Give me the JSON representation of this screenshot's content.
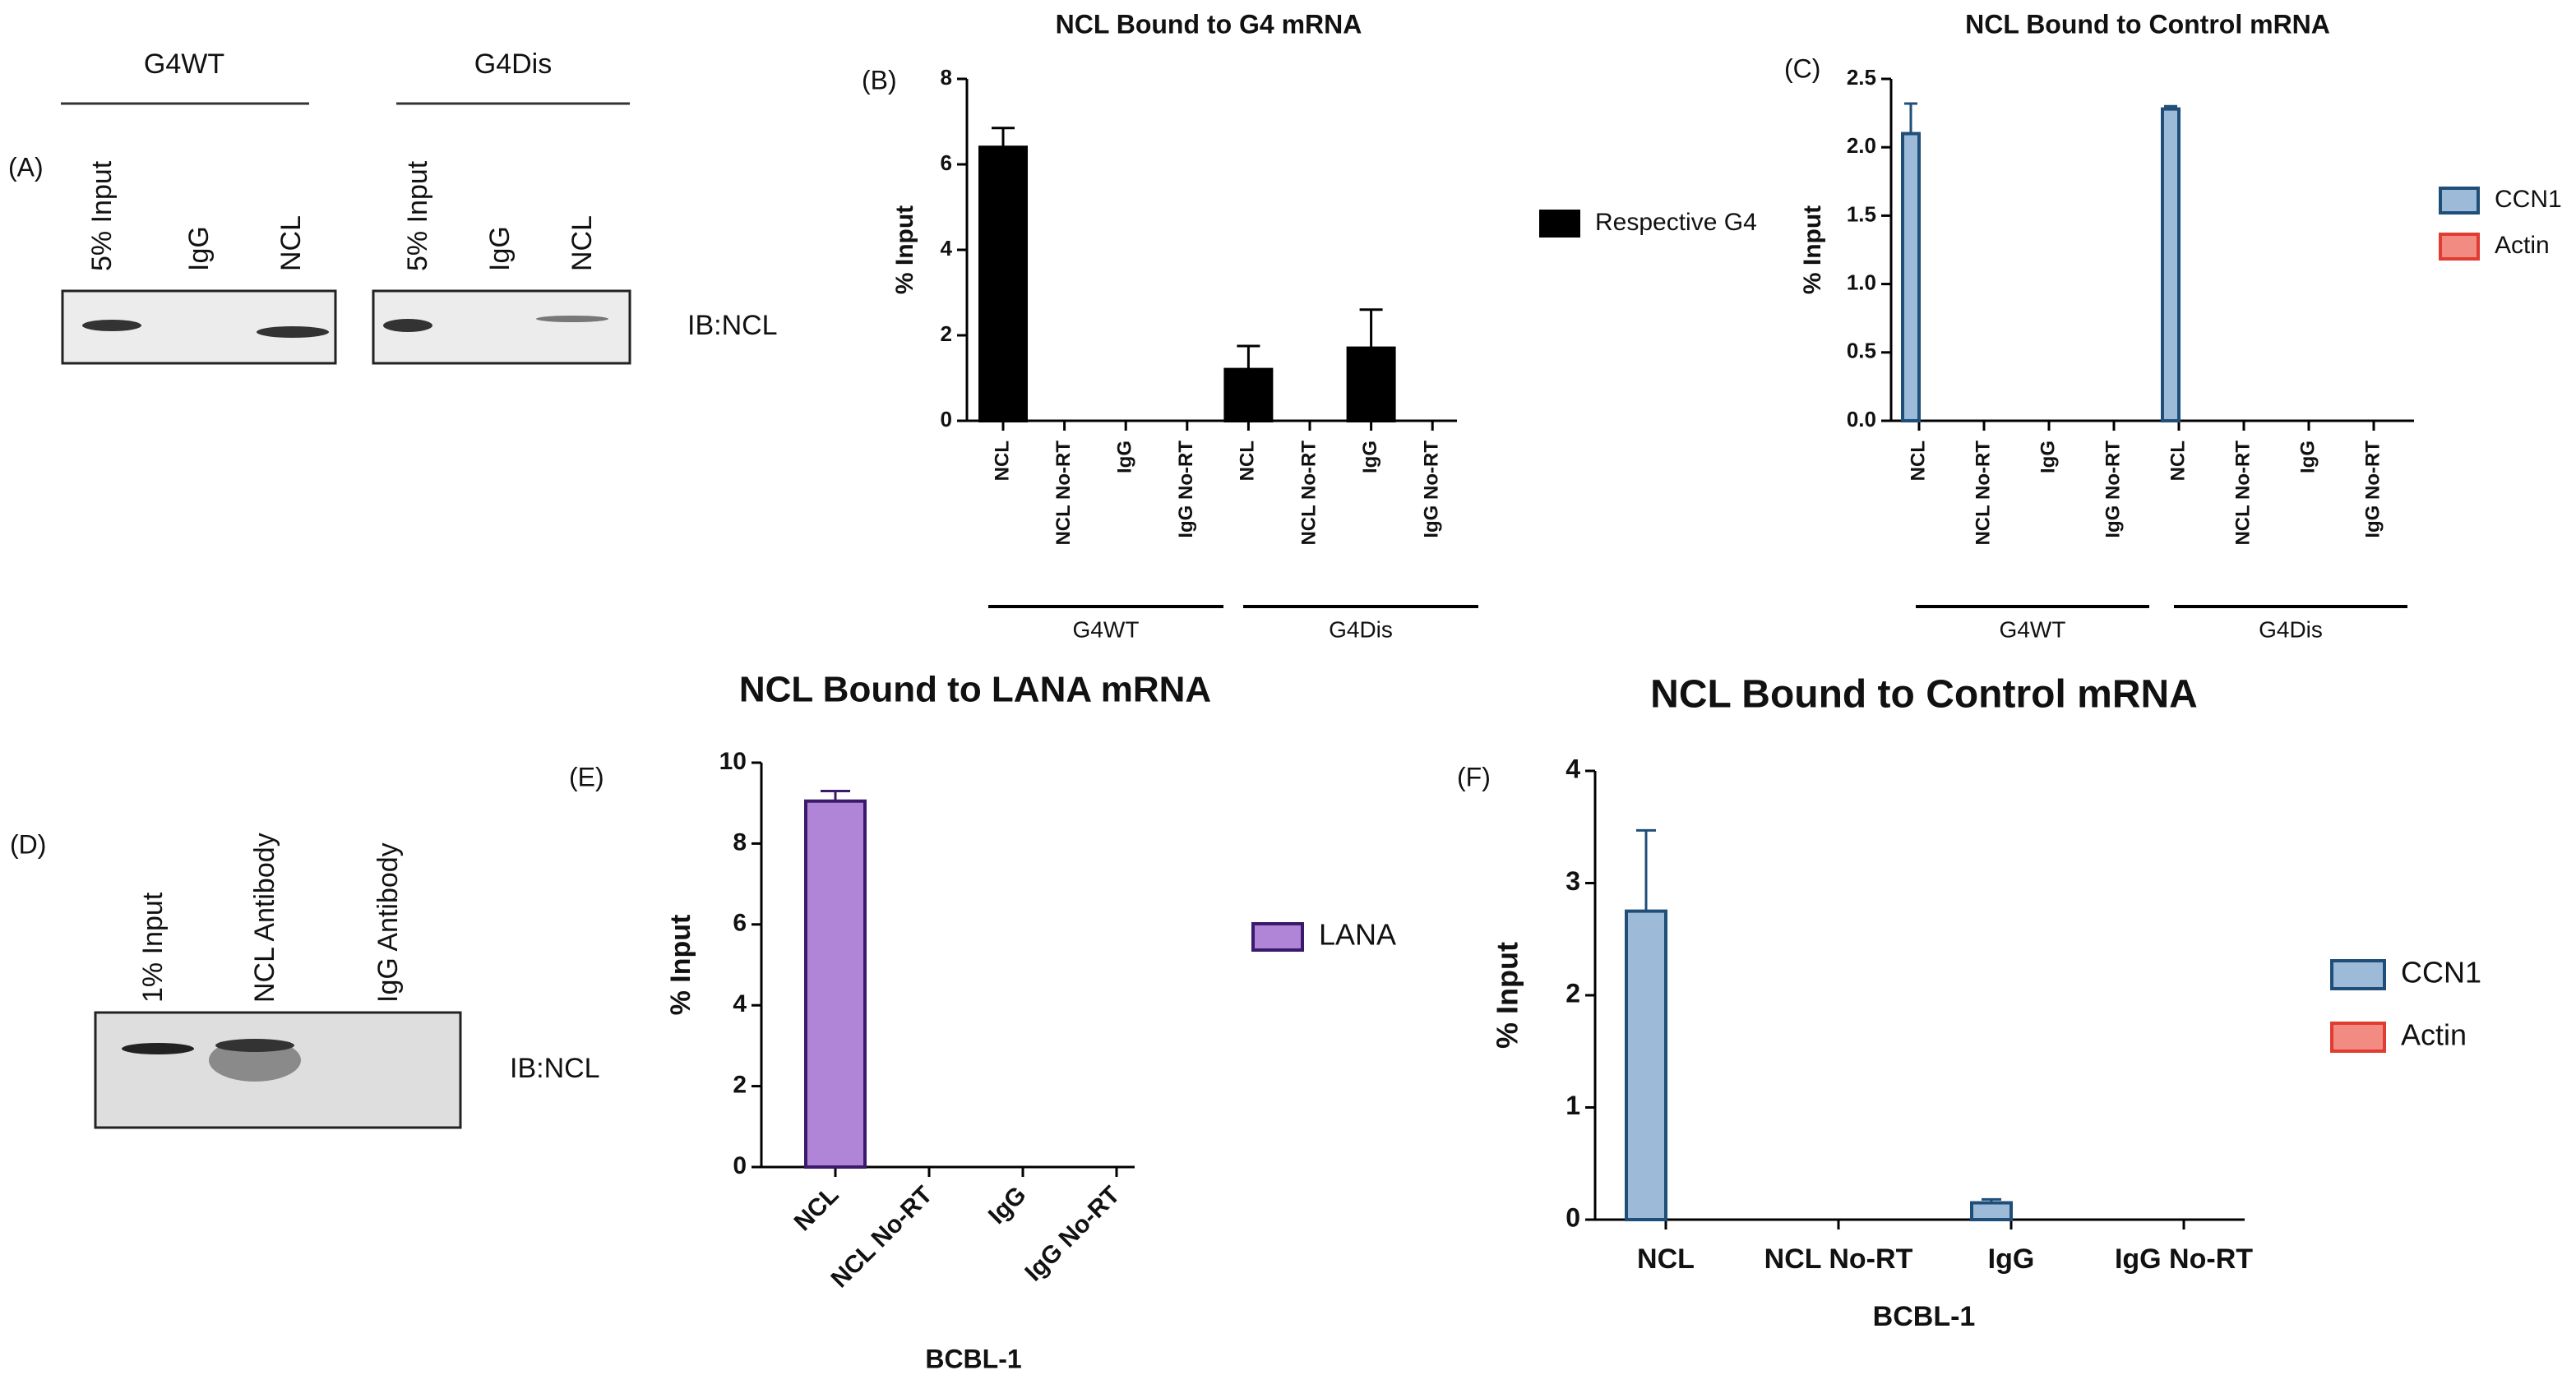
{
  "chart_data": [
    {
      "type": "bar",
      "panel_label": "(B)",
      "title": "NCL Bound to G4 mRNA",
      "ylabel": "% Input",
      "categories": [
        "NCL",
        "NCL No-RT",
        "IgG",
        "IgG No-RT",
        "NCL",
        "NCL No-RT",
        "IgG",
        "IgG No-RT"
      ],
      "groups": [
        "G4WT",
        "G4Dis"
      ],
      "series": [
        {
          "name": "Respective G4",
          "color": "#000000",
          "edge": "#000000",
          "values": [
            6.4,
            0,
            0,
            0,
            1.2,
            0,
            1.7,
            0
          ],
          "errors": [
            0.45,
            null,
            null,
            null,
            0.55,
            null,
            0.9,
            null
          ]
        }
      ],
      "ylim": [
        0,
        8
      ],
      "yticks": [
        0,
        2,
        4,
        6,
        8
      ],
      "legend": "right"
    },
    {
      "type": "bar",
      "panel_label": "(C)",
      "title": "NCL Bound to Control mRNA",
      "ylabel": "% Input",
      "categories": [
        "NCL",
        "NCL No-RT",
        "IgG",
        "IgG No-RT",
        "NCL",
        "NCL No-RT",
        "IgG",
        "IgG No-RT"
      ],
      "groups": [
        "G4WT",
        "G4Dis"
      ],
      "series": [
        {
          "name": "CCN1",
          "color": "#9dbbd8",
          "edge": "#1f4e79",
          "values": [
            2.1,
            0,
            0,
            0,
            2.28,
            0,
            0,
            0
          ],
          "errors": [
            0.22,
            null,
            null,
            null,
            0.02,
            null,
            null,
            null
          ]
        },
        {
          "name": "Actin",
          "color": "#f28b82",
          "edge": "#e03c31",
          "values": [
            0,
            0,
            0,
            0,
            0,
            0,
            0,
            0
          ],
          "errors": [
            null,
            null,
            null,
            null,
            null,
            null,
            null,
            null
          ]
        }
      ],
      "ylim": [
        0,
        2.5
      ],
      "yticks": [
        {
          "value": 0,
          "label": "0.0"
        },
        0.5,
        {
          "value": 1,
          "label": "1.0"
        },
        1.5,
        {
          "value": 2,
          "label": "2.0"
        },
        2.5
      ],
      "legend": "right"
    },
    {
      "type": "bar",
      "panel_label": "(E)",
      "title": "NCL Bound to LANA mRNA",
      "ylabel": "% Input",
      "xlabel": "BCBL-1",
      "categories": [
        "NCL",
        "NCL No-RT",
        "IgG",
        "IgG No-RT"
      ],
      "series": [
        {
          "name": "LANA",
          "color": "#b085d8",
          "edge": "#3b1a6b",
          "values": [
            9.05,
            0,
            0,
            0
          ],
          "errors": [
            0.25,
            null,
            null,
            null
          ]
        }
      ],
      "ylim": [
        0,
        10
      ],
      "yticks": [
        0,
        2,
        4,
        6,
        8,
        10
      ],
      "legend": "right"
    },
    {
      "type": "bar",
      "panel_label": "(F)",
      "title": "NCL Bound to Control mRNA",
      "ylabel": "% Input",
      "xlabel": "BCBL-1",
      "categories": [
        "NCL",
        "NCL No-RT",
        "IgG",
        "IgG No-RT"
      ],
      "series": [
        {
          "name": "CCN1",
          "color": "#9dbbd8",
          "edge": "#1f4e79",
          "values": [
            2.75,
            0,
            0.15,
            0
          ],
          "errors": [
            0.72,
            null,
            0.03,
            null
          ]
        },
        {
          "name": "Actin",
          "color": "#f28b82",
          "edge": "#e03c31",
          "values": [
            0,
            0,
            0,
            0
          ],
          "errors": [
            null,
            null,
            null,
            null
          ]
        }
      ],
      "ylim": [
        0,
        4
      ],
      "yticks": [
        0,
        1,
        2,
        3,
        4
      ],
      "legend": "right"
    }
  ],
  "blots": [
    {
      "panel_label": "(A)",
      "groups": [
        {
          "label": "G4WT",
          "lanes": [
            "5% Input",
            "IgG",
            "NCL"
          ]
        },
        {
          "label": "G4Dis",
          "lanes": [
            "5% Input",
            "IgG",
            "NCL"
          ]
        }
      ],
      "probe": "IB:NCL"
    },
    {
      "panel_label": "(D)",
      "groups": [
        {
          "lanes": [
            "1% Input",
            "NCL Antibody",
            "IgG Antibody"
          ]
        }
      ],
      "probe": "IB:NCL"
    }
  ]
}
